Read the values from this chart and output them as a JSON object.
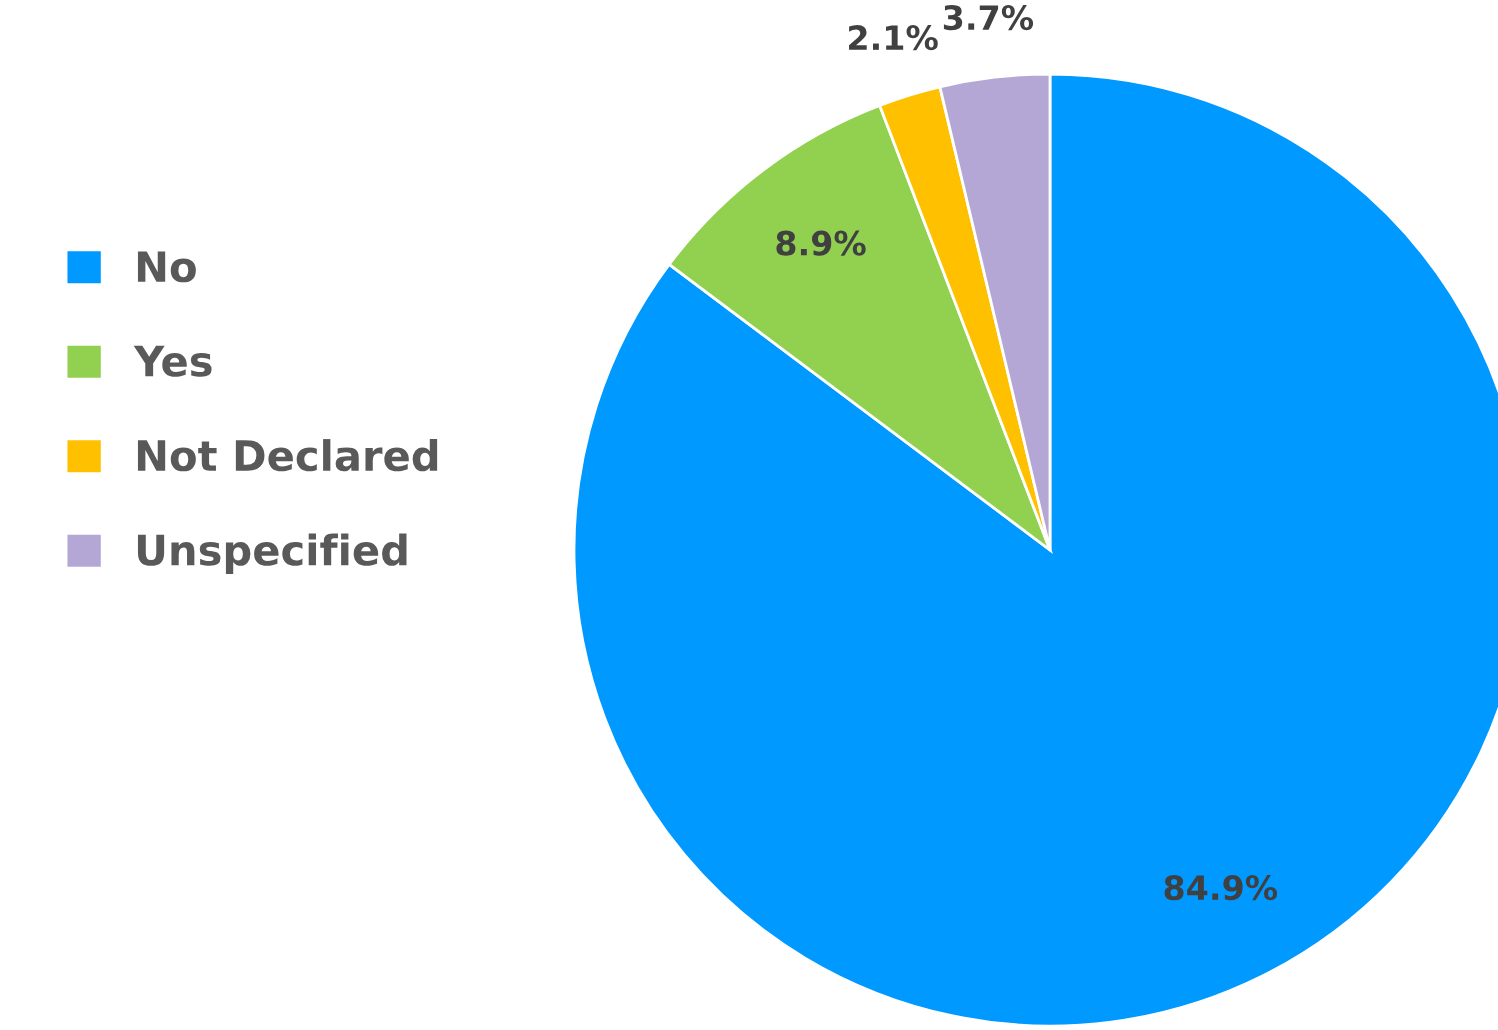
{
  "chart_data": {
    "type": "pie",
    "categories": [
      "No",
      "Yes",
      "Not Declared",
      "Unspecified"
    ],
    "values": [
      84.9,
      8.9,
      2.1,
      3.7
    ],
    "colors": [
      "#0099ff",
      "#92d050",
      "#ffc000",
      "#b4a7d6"
    ],
    "value_labels": [
      "84.9%",
      "8.9%",
      "2.1%",
      "3.7%"
    ],
    "legend": "left"
  }
}
